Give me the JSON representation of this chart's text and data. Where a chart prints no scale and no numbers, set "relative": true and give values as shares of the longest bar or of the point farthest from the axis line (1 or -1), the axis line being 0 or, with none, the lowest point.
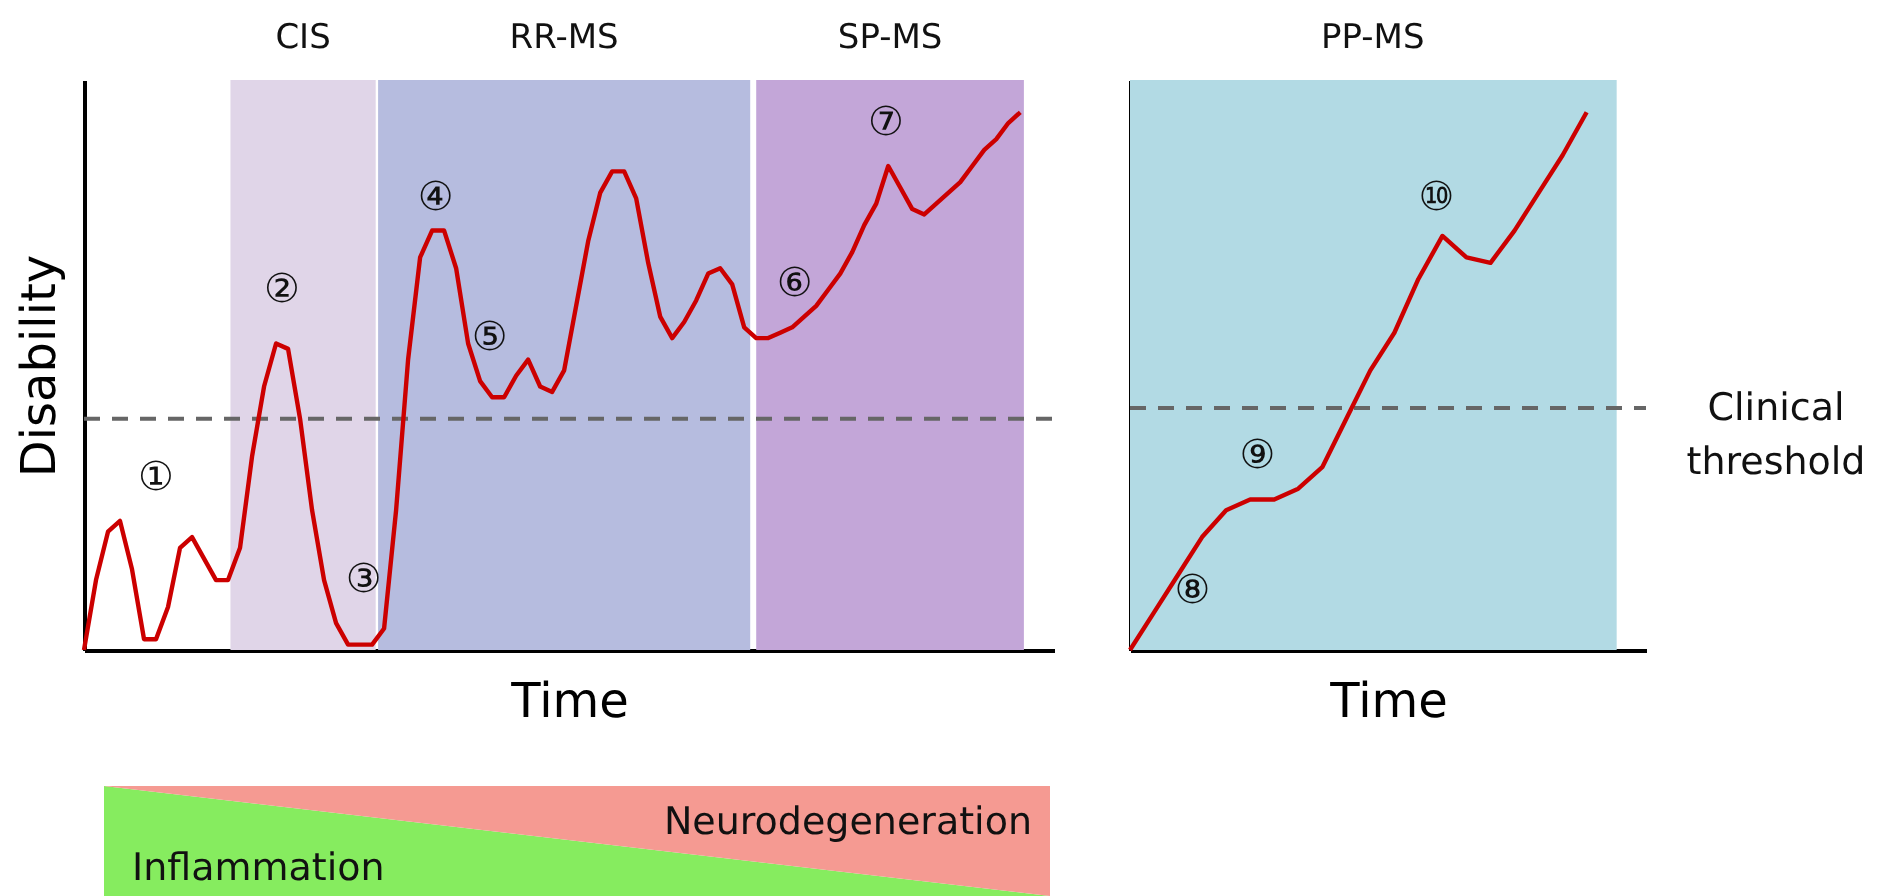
{
  "chart_data": [
    {
      "type": "line",
      "relative": true,
      "xlabel": "Time",
      "ylabel": "Disability",
      "categories": [
        null,
        null,
        null,
        null,
        null,
        null,
        null,
        null,
        null,
        null,
        null,
        null,
        null,
        null,
        null,
        null,
        null,
        null,
        null,
        null,
        null,
        null,
        null,
        null,
        null,
        null,
        null,
        null,
        null,
        null,
        null,
        null,
        null,
        null,
        null,
        null,
        null,
        null,
        null,
        null,
        null,
        null,
        null,
        null,
        null,
        null,
        null,
        null,
        null,
        null,
        null,
        null,
        null,
        null,
        null,
        null,
        null,
        null,
        null,
        null,
        null,
        null,
        null,
        null,
        null,
        null,
        null,
        null,
        null,
        null,
        null,
        null,
        null,
        null,
        null,
        null,
        null,
        null,
        null
      ],
      "series": [
        {
          "color": "#cc0000",
          "values": [
            0,
            0.13,
            0.22,
            0.24,
            0.15,
            0.02,
            0.02,
            0.08,
            0.19,
            0.21,
            0.17,
            0.13,
            0.13,
            0.19,
            0.36,
            0.49,
            0.57,
            0.56,
            0.43,
            0.26,
            0.13,
            0.05,
            0.01,
            0.01,
            0.01,
            0.04,
            0.26,
            0.54,
            0.73,
            0.78,
            0.78,
            0.71,
            0.57,
            0.5,
            0.47,
            0.47,
            0.51,
            0.54,
            0.49,
            0.48,
            0.52,
            0.64,
            0.76,
            0.85,
            0.89,
            0.89,
            0.84,
            0.72,
            0.62,
            0.58,
            0.61,
            0.65,
            0.7,
            0.71,
            0.68,
            0.6,
            0.58,
            0.58,
            0.59,
            0.6,
            0.62,
            0.64,
            0.67,
            0.7,
            0.74,
            0.79,
            0.83,
            0.9,
            0.86,
            0.82,
            0.81,
            0.83,
            0.85,
            0.87,
            0.9,
            0.93,
            0.95,
            0.98,
            1
          ]
        }
      ],
      "ref_lines": [
        {
          "axis": "y",
          "value": 0.43,
          "color": "#666666",
          "line_style": "dashed"
        }
      ],
      "annotations": [
        "CIS",
        "RR-MS",
        "SP-MS",
        "①",
        "②",
        "③",
        "④",
        "⑤",
        "⑥",
        "⑦",
        "Neurodegeneration",
        "Inflammation"
      ]
    },
    {
      "type": "line",
      "relative": true,
      "xlabel": "Time",
      "categories": [
        null,
        null,
        null,
        null,
        null,
        null,
        null,
        null,
        null,
        null,
        null,
        null,
        null,
        null,
        null,
        null,
        null,
        null,
        null,
        null
      ],
      "series": [
        {
          "color": "#cc0000",
          "values": [
            0,
            0.07,
            0.14,
            0.21,
            0.26,
            0.28,
            0.28,
            0.3,
            0.34,
            0.43,
            0.52,
            0.59,
            0.69,
            0.77,
            0.73,
            0.72,
            0.78,
            0.85,
            0.92,
            1
          ]
        }
      ],
      "ref_lines": [
        {
          "axis": "y",
          "value": 0.45,
          "label": "Clinical threshold",
          "color": "#666666",
          "line_style": "dashed"
        }
      ],
      "annotations": [
        "PP-MS",
        "⑧",
        "⑨",
        "⑩"
      ]
    }
  ]
}
